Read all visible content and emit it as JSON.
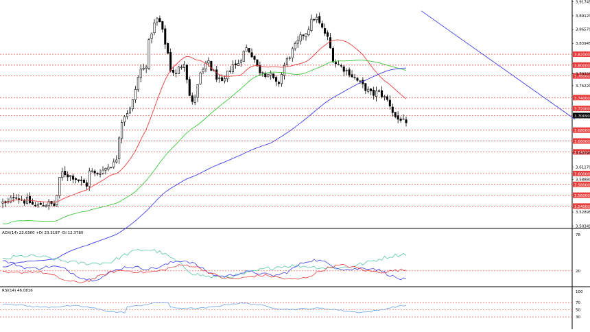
{
  "chart_data": [
    {
      "type": "candlestick",
      "panel": "price",
      "y_axis_labels": [
        "3.91745",
        "3.89120",
        "3.86570",
        "3.83945",
        "3.78325",
        "3.76220",
        "3.63790",
        "3.61170",
        "3.58880",
        "3.52895",
        "3.50345"
      ],
      "price_tags": [
        {
          "label": "3.82000",
          "value": 3.82
        },
        {
          "label": "3.80000",
          "value": 3.8
        },
        {
          "label": "3.78000",
          "value": 3.78
        },
        {
          "label": "3.74000",
          "value": 3.74
        },
        {
          "label": "3.72000",
          "value": 3.72
        },
        {
          "label": "3.70690",
          "value": 3.7069
        },
        {
          "label": "3.68000",
          "value": 3.68
        },
        {
          "label": "3.66000",
          "value": 3.66
        },
        {
          "label": "3.64000",
          "value": 3.64
        },
        {
          "label": "3.60000",
          "value": 3.6
        },
        {
          "label": "3.58000",
          "value": 3.58
        },
        {
          "label": "3.56000",
          "value": 3.56
        },
        {
          "label": "3.54000",
          "value": 3.54
        }
      ],
      "current_price": 3.7069,
      "ylim": [
        3.5,
        3.92
      ],
      "close_path": [
        [
          0,
          3.546
        ],
        [
          5,
          3.543
        ],
        [
          10,
          3.548
        ],
        [
          15,
          3.558
        ],
        [
          18,
          3.561
        ],
        [
          22,
          3.556
        ],
        [
          27,
          3.552
        ],
        [
          32,
          3.549
        ],
        [
          36,
          3.551
        ],
        [
          41,
          3.545
        ],
        [
          46,
          3.54
        ],
        [
          51,
          3.541
        ],
        [
          56,
          3.544
        ],
        [
          61,
          3.542
        ],
        [
          66,
          3.545
        ],
        [
          71,
          3.543
        ],
        [
          76,
          3.541
        ],
        [
          81,
          3.572
        ],
        [
          84,
          3.598
        ],
        [
          88,
          3.603
        ],
        [
          93,
          3.598
        ],
        [
          98,
          3.596
        ],
        [
          103,
          3.594
        ],
        [
          108,
          3.59
        ],
        [
          113,
          3.585
        ],
        [
          118,
          3.582
        ],
        [
          123,
          3.579
        ],
        [
          127,
          3.608
        ],
        [
          132,
          3.6
        ],
        [
          136,
          3.598
        ],
        [
          140,
          3.603
        ],
        [
          145,
          3.605
        ],
        [
          150,
          3.61
        ],
        [
          155,
          3.615
        ],
        [
          160,
          3.617
        ],
        [
          165,
          3.62
        ],
        [
          168,
          3.655
        ],
        [
          172,
          3.692
        ],
        [
          176,
          3.705
        ],
        [
          180,
          3.712
        ],
        [
          184,
          3.715
        ],
        [
          188,
          3.725
        ],
        [
          192,
          3.748
        ],
        [
          196,
          3.77
        ],
        [
          200,
          3.79
        ],
        [
          204,
          3.795
        ],
        [
          208,
          3.788
        ],
        [
          212,
          3.835
        ],
        [
          216,
          3.858
        ],
        [
          220,
          3.872
        ],
        [
          224,
          3.885
        ],
        [
          228,
          3.88
        ],
        [
          231,
          3.875
        ],
        [
          234,
          3.852
        ],
        [
          237,
          3.84
        ],
        [
          241,
          3.82
        ],
        [
          245,
          3.79
        ],
        [
          249,
          3.788
        ],
        [
          253,
          3.782
        ],
        [
          257,
          3.795
        ],
        [
          261,
          3.8
        ],
        [
          264,
          3.81
        ],
        [
          268,
          3.78
        ],
        [
          272,
          3.745
        ],
        [
          276,
          3.728
        ],
        [
          280,
          3.742
        ],
        [
          284,
          3.76
        ],
        [
          288,
          3.782
        ],
        [
          292,
          3.79
        ],
        [
          296,
          3.798
        ],
        [
          300,
          3.808
        ],
        [
          304,
          3.792
        ],
        [
          308,
          3.785
        ],
        [
          312,
          3.778
        ],
        [
          316,
          3.77
        ],
        [
          320,
          3.765
        ],
        [
          324,
          3.772
        ],
        [
          328,
          3.786
        ],
        [
          332,
          3.795
        ],
        [
          336,
          3.802
        ],
        [
          340,
          3.798
        ],
        [
          344,
          3.806
        ],
        [
          348,
          3.815
        ],
        [
          352,
          3.826
        ],
        [
          356,
          3.832
        ],
        [
          360,
          3.825
        ],
        [
          364,
          3.818
        ],
        [
          368,
          3.808
        ],
        [
          372,
          3.792
        ],
        [
          376,
          3.788
        ],
        [
          380,
          3.79
        ],
        [
          384,
          3.782
        ],
        [
          388,
          3.785
        ],
        [
          392,
          3.778
        ],
        [
          396,
          3.77
        ],
        [
          400,
          3.762
        ],
        [
          404,
          3.772
        ],
        [
          408,
          3.79
        ],
        [
          412,
          3.805
        ],
        [
          416,
          3.812
        ],
        [
          420,
          3.822
        ],
        [
          424,
          3.83
        ],
        [
          428,
          3.838
        ],
        [
          432,
          3.845
        ],
        [
          436,
          3.855
        ],
        [
          440,
          3.858
        ],
        [
          444,
          3.863
        ],
        [
          448,
          3.875
        ],
        [
          452,
          3.885
        ],
        [
          456,
          3.89
        ],
        [
          460,
          3.88
        ],
        [
          464,
          3.87
        ],
        [
          468,
          3.862
        ],
        [
          472,
          3.855
        ],
        [
          476,
          3.84
        ],
        [
          480,
          3.815
        ],
        [
          484,
          3.805
        ],
        [
          488,
          3.802
        ],
        [
          492,
          3.798
        ],
        [
          496,
          3.795
        ],
        [
          500,
          3.79
        ],
        [
          504,
          3.788
        ],
        [
          508,
          3.782
        ],
        [
          512,
          3.778
        ],
        [
          516,
          3.772
        ],
        [
          520,
          3.768
        ],
        [
          524,
          3.762
        ],
        [
          528,
          3.758
        ],
        [
          532,
          3.753
        ],
        [
          536,
          3.748
        ],
        [
          540,
          3.746
        ],
        [
          544,
          3.749
        ],
        [
          548,
          3.751
        ],
        [
          552,
          3.746
        ],
        [
          556,
          3.74
        ],
        [
          560,
          3.736
        ],
        [
          564,
          3.728
        ],
        [
          568,
          3.715
        ],
        [
          572,
          3.705
        ],
        [
          576,
          3.7
        ],
        [
          580,
          3.702
        ],
        [
          584,
          3.695
        ],
        [
          588,
          3.688
        ]
      ],
      "bar_count": 150,
      "indicators": [
        {
          "kind": "sma",
          "color": "#e83c3c",
          "role": "fast"
        },
        {
          "kind": "sma",
          "color": "#3cc83c",
          "role": "medium"
        },
        {
          "kind": "sma",
          "color": "#3c3ce8",
          "role": "slow"
        },
        {
          "kind": "trendline",
          "color": "#3c3ce8",
          "from": [
            614,
            3.9
          ],
          "to": [
            838,
            3.7
          ]
        }
      ]
    },
    {
      "type": "line",
      "panel": "adx",
      "title": "ADX(14) 23.6360 +DI 23.3187 -DI 12.3780",
      "y_axis_labels": [
        "78",
        "20"
      ],
      "ylim": [
        0,
        78
      ],
      "series": [
        {
          "name": "ADX",
          "color": "#55c8a8"
        },
        {
          "name": "+DI",
          "color": "#3c3ce8"
        },
        {
          "name": "-DI",
          "color": "#e83c3c"
        }
      ]
    },
    {
      "type": "line",
      "panel": "rsi",
      "title": "RSI(14) 46.0816",
      "y_axis_labels": [
        "100",
        "70",
        "50",
        "30"
      ],
      "ylim": [
        0,
        100
      ],
      "series": [
        {
          "name": "RSI",
          "color": "#6aa0e8"
        }
      ]
    }
  ],
  "colors": {
    "candle_bull": "#ffffff",
    "candle_bear": "#000000",
    "candle_wick": "#000000",
    "grid_red": "#e83c3c",
    "tag_red": "#e83c3c",
    "tag_current": "#000000",
    "axis_text": "#000000",
    "panel_border": "#000000"
  }
}
